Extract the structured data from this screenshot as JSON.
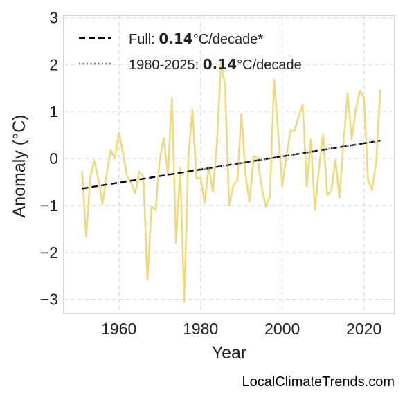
{
  "chart_data": {
    "type": "line",
    "xlabel": "Year",
    "ylabel": "Anomaly (°C)",
    "xlim": [
      1946.5,
      2027.5
    ],
    "ylim": [
      -3.3,
      3.05
    ],
    "x_ticks": [
      1960,
      1980,
      2000,
      2020
    ],
    "x_tick_labels": [
      "1960",
      "1980",
      "2000",
      "2020"
    ],
    "y_ticks": [
      3,
      2,
      1,
      0,
      -1,
      -2,
      -3
    ],
    "y_tick_labels": [
      "3",
      "2",
      "1",
      "0",
      "−1",
      "−2",
      "−3"
    ],
    "grid": true,
    "legend_position": "top-left",
    "series": [
      {
        "color": "#f0d97c",
        "style": "solid",
        "x": [
          1951,
          1952,
          1953,
          1954,
          1955,
          1956,
          1957,
          1958,
          1959,
          1960,
          1961,
          1962,
          1963,
          1964,
          1965,
          1966,
          1967,
          1968,
          1969,
          1970,
          1971,
          1972,
          1973,
          1974,
          1975,
          1976,
          1977,
          1978,
          1979,
          1980,
          1981,
          1982,
          1983,
          1984,
          1985,
          1986,
          1987,
          1988,
          1989,
          1990,
          1991,
          1992,
          1993,
          1994,
          1995,
          1996,
          1997,
          1998,
          1999,
          2000,
          2001,
          2002,
          2003,
          2004,
          2005,
          2006,
          2007,
          2008,
          2009,
          2010,
          2011,
          2012,
          2013,
          2014,
          2015,
          2016,
          2017,
          2018,
          2019,
          2020,
          2021,
          2022,
          2023,
          2024
        ],
        "values": [
          -0.27,
          -1.67,
          -0.4,
          -0.04,
          -0.45,
          -0.97,
          -0.35,
          0.18,
          0.0,
          0.55,
          0.13,
          -0.37,
          -0.51,
          -0.74,
          -0.28,
          -0.38,
          -2.58,
          -1.02,
          -1.1,
          -0.02,
          0.43,
          -0.35,
          1.29,
          -1.8,
          -0.2,
          -3.05,
          0.0,
          1.05,
          -0.43,
          -0.4,
          -0.95,
          -0.17,
          -0.7,
          0.3,
          2.05,
          1.55,
          -1.0,
          -0.57,
          -0.47,
          0.95,
          -0.35,
          -0.92,
          0.05,
          0.0,
          -0.63,
          -1.03,
          -0.8,
          1.68,
          0.55,
          -0.6,
          0.05,
          0.59,
          0.59,
          0.89,
          1.14,
          -0.6,
          0.4,
          -1.1,
          -0.2,
          0.52,
          -0.78,
          -0.7,
          -0.03,
          -0.83,
          0.35,
          1.39,
          0.4,
          1.05,
          1.44,
          1.29,
          -0.45,
          -0.67,
          -0.05,
          1.47
        ]
      },
      {
        "name": "Full",
        "color": "#000000",
        "style": "dashed",
        "x": [
          1951,
          2024
        ],
        "values": [
          -0.64,
          0.38
        ]
      },
      {
        "name": "1980-2025",
        "color": "#777777",
        "style": "dotted",
        "x": [
          1980,
          2024
        ],
        "values": [
          -0.24,
          0.38
        ]
      }
    ],
    "legend": [
      {
        "prefix": "Full: ",
        "value": "0.14",
        "suffix": "°C/decade*"
      },
      {
        "prefix": "1980-2025: ",
        "value": "0.14",
        "suffix": "°C/decade"
      }
    ]
  },
  "source_label": "LocalClimateTrends.com"
}
